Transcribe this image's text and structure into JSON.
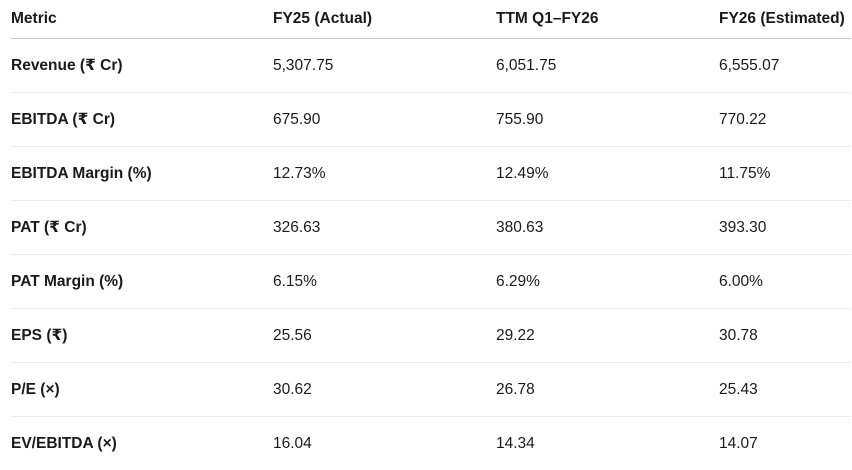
{
  "table": {
    "headers": [
      "Metric",
      "FY25 (Actual)",
      "TTM Q1–FY26",
      "FY26 (Estimated)"
    ],
    "rows": [
      [
        "Revenue (₹ Cr)",
        "5,307.75",
        "6,051.75",
        "6,555.07"
      ],
      [
        "EBITDA (₹ Cr)",
        "675.90",
        "755.90",
        "770.22"
      ],
      [
        "EBITDA Margin (%)",
        "12.73%",
        "12.49%",
        "11.75%"
      ],
      [
        "PAT (₹ Cr)",
        "326.63",
        "380.63",
        "393.30"
      ],
      [
        "PAT Margin (%)",
        "6.15%",
        "6.29%",
        "6.00%"
      ],
      [
        "EPS (₹)",
        "25.56",
        "29.22",
        "30.78"
      ],
      [
        "P/E (×)",
        "30.62",
        "26.78",
        "25.43"
      ],
      [
        "EV/EBITDA (×)",
        "16.04",
        "14.34",
        "14.07"
      ]
    ]
  }
}
